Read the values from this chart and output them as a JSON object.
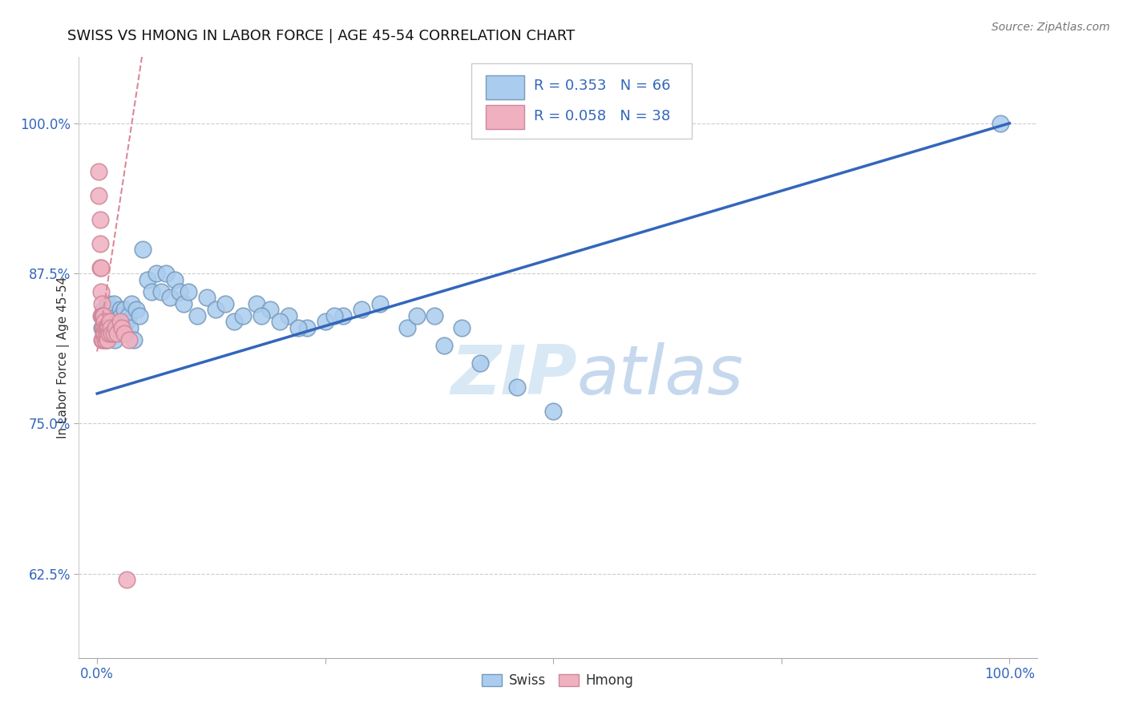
{
  "title": "SWISS VS HMONG IN LABOR FORCE | AGE 45-54 CORRELATION CHART",
  "source": "Source: ZipAtlas.com",
  "ylabel": "In Labor Force | Age 45-54",
  "xlim": [
    -0.02,
    1.03
  ],
  "ylim": [
    0.555,
    1.055
  ],
  "y_ticks": [
    0.625,
    0.75,
    0.875,
    1.0
  ],
  "y_tick_labels": [
    "62.5%",
    "75.0%",
    "87.5%",
    "100.0%"
  ],
  "x_ticks": [
    0.0,
    0.25,
    0.5,
    0.75,
    1.0
  ],
  "x_tick_labels": [
    "0.0%",
    "",
    "",
    "",
    "100.0%"
  ],
  "swiss_R": 0.353,
  "swiss_N": 66,
  "hmong_R": 0.058,
  "hmong_N": 38,
  "swiss_color": "#aaccee",
  "swiss_edge_color": "#7799bb",
  "hmong_color": "#f0b0c0",
  "hmong_edge_color": "#cc8899",
  "regression_line_color": "#3366bb",
  "hmong_regression_line_color": "#dd8899",
  "watermark_zip": "ZIP",
  "watermark_atlas": "atlas",
  "swiss_x": [
    0.005,
    0.007,
    0.008,
    0.009,
    0.01,
    0.011,
    0.012,
    0.013,
    0.014,
    0.015,
    0.016,
    0.018,
    0.019,
    0.02,
    0.022,
    0.023,
    0.025,
    0.026,
    0.027,
    0.028,
    0.03,
    0.032,
    0.034,
    0.036,
    0.038,
    0.04,
    0.043,
    0.046,
    0.05,
    0.055,
    0.06,
    0.065,
    0.07,
    0.075,
    0.08,
    0.085,
    0.09,
    0.095,
    0.1,
    0.11,
    0.12,
    0.13,
    0.14,
    0.15,
    0.16,
    0.175,
    0.19,
    0.21,
    0.23,
    0.25,
    0.27,
    0.29,
    0.31,
    0.34,
    0.37,
    0.4,
    0.18,
    0.2,
    0.22,
    0.26,
    0.35,
    0.38,
    0.42,
    0.46,
    0.5,
    0.99
  ],
  "swiss_y": [
    0.83,
    0.845,
    0.835,
    0.84,
    0.82,
    0.83,
    0.85,
    0.835,
    0.845,
    0.83,
    0.84,
    0.85,
    0.82,
    0.835,
    0.84,
    0.83,
    0.845,
    0.84,
    0.835,
    0.83,
    0.845,
    0.835,
    0.84,
    0.83,
    0.85,
    0.82,
    0.845,
    0.84,
    0.895,
    0.87,
    0.86,
    0.875,
    0.86,
    0.875,
    0.855,
    0.87,
    0.86,
    0.85,
    0.86,
    0.84,
    0.855,
    0.845,
    0.85,
    0.835,
    0.84,
    0.85,
    0.845,
    0.84,
    0.83,
    0.835,
    0.84,
    0.845,
    0.85,
    0.83,
    0.84,
    0.83,
    0.84,
    0.835,
    0.83,
    0.84,
    0.84,
    0.815,
    0.8,
    0.78,
    0.76,
    1.0
  ],
  "hmong_x": [
    0.002,
    0.002,
    0.003,
    0.003,
    0.003,
    0.004,
    0.004,
    0.004,
    0.005,
    0.005,
    0.005,
    0.006,
    0.006,
    0.006,
    0.007,
    0.007,
    0.007,
    0.008,
    0.008,
    0.009,
    0.009,
    0.01,
    0.01,
    0.011,
    0.011,
    0.012,
    0.013,
    0.014,
    0.015,
    0.016,
    0.018,
    0.02,
    0.022,
    0.025,
    0.027,
    0.03,
    0.032,
    0.035
  ],
  "hmong_y": [
    0.96,
    0.94,
    0.92,
    0.9,
    0.88,
    0.88,
    0.86,
    0.84,
    0.85,
    0.84,
    0.82,
    0.84,
    0.83,
    0.82,
    0.84,
    0.83,
    0.825,
    0.835,
    0.825,
    0.83,
    0.82,
    0.83,
    0.825,
    0.83,
    0.82,
    0.83,
    0.825,
    0.835,
    0.83,
    0.825,
    0.825,
    0.83,
    0.825,
    0.835,
    0.83,
    0.825,
    0.62,
    0.82
  ]
}
